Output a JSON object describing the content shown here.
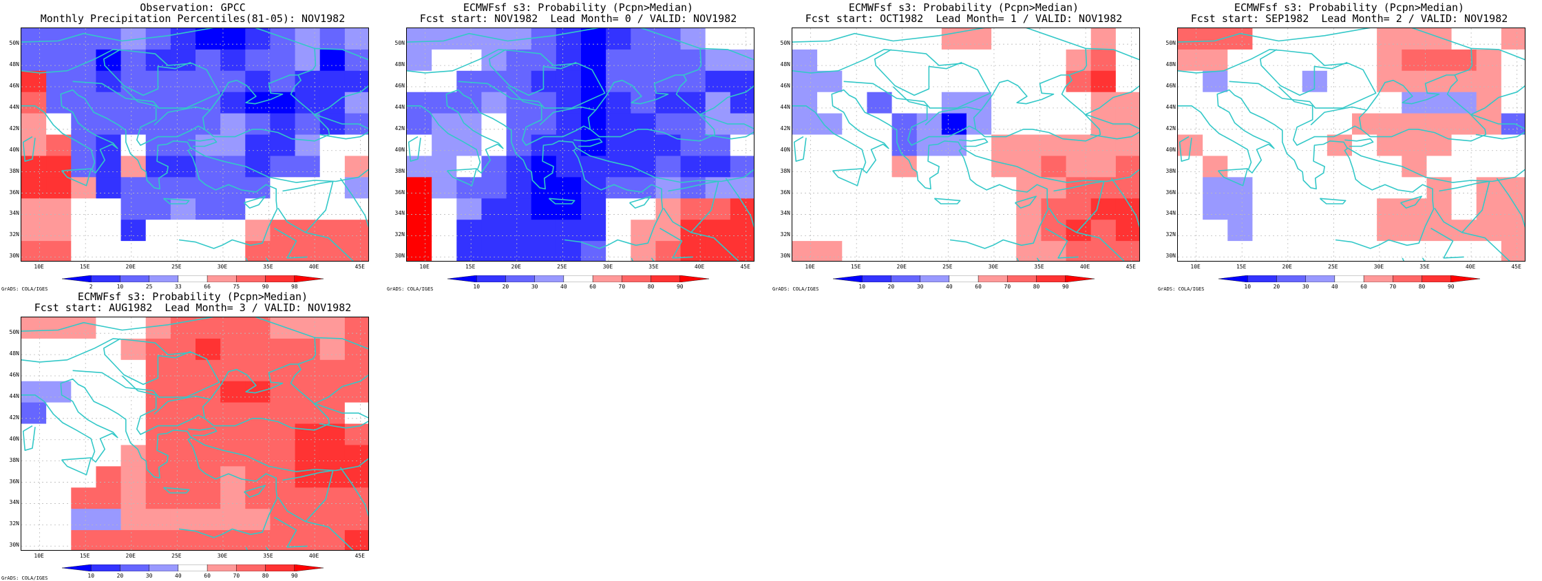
{
  "colors": {
    "coast": "#33c8c8",
    "grid": "#bbbbbb",
    "scale": [
      "#0000ff",
      "#3333ff",
      "#6666ff",
      "#9999ff",
      "#ffffff",
      "#ff9999",
      "#ff6666",
      "#ff3333",
      "#ff0000"
    ]
  },
  "y_ticks": [
    "50N",
    "48N",
    "46N",
    "44N",
    "42N",
    "40N",
    "38N",
    "36N",
    "34N",
    "32N",
    "30N"
  ],
  "x_ticks": [
    "10E",
    "15E",
    "20E",
    "25E",
    "30E",
    "35E",
    "40E",
    "45E"
  ],
  "credit": "GrADS: COLA/IGES",
  "panels": [
    {
      "title1": "Observation: GPCC",
      "title2": "Monthly Precipitation Percentiles(81-05): NOV1982",
      "legend": [
        "2",
        "10",
        "25",
        "33",
        "66",
        "75",
        "90",
        "98"
      ],
      "grid": [
        "22223210012323",
        "22202112122302",
        "72212222212111",
        "62222222100113",
        "54222222321212",
        "56214223311344",
        "77215112212245",
        "77512222224443",
        "55442232244444",
        "55441444456666",
        "66444444466666"
      ]
    },
    {
      "title1": "ECMWFsf s3: Probability (Pcpn>Median)",
      "title2": "Fcst start: NOV1982  Lead Month= 0 / VALID: NOV1982",
      "legend": [
        "10",
        "20",
        "30",
        "40",
        "60",
        "70",
        "80",
        "90"
      ],
      "grid": [
        "33333210122344",
        "34432210222233",
        "44222110222211",
        "22232210121131",
        "23342210112233",
        "43342110111224",
        "33421011112112",
        "83221001223233",
        "84311001445667",
        "84111111455777",
        "84111112456777"
      ]
    },
    {
      "title1": "ECMWFsf s3: Probability (Pcpn>Median)",
      "title2": "Fcst start: OCT1982  Lead Month= 1 / VALID: NOV1982",
      "legend": [
        "10",
        "20",
        "30",
        "40",
        "60",
        "70",
        "80",
        "90"
      ],
      "grid": [
        "44444455444454",
        "34444444444564",
        "33444444444674",
        "34424433444455",
        "33442303444455",
        "44442334555555",
        "44445444556556",
        "44444444455666",
        "44444444456677",
        "44444444456767",
        "55444444455666"
      ]
    },
    {
      "title1": "ECMWFsf s3: Probability (Pcpn>Median)",
      "title2": "Fcst start: SEP1982  Lead Month= 2 / VALID: NOV1982",
      "legend": [
        "10",
        "20",
        "30",
        "40",
        "60",
        "70",
        "80",
        "90"
      ],
      "grid": [
        "66644444555445",
        "55444444566654",
        "43444344555554",
        "44444444433354",
        "44444445555552",
        "54444454555444",
        "45444444454444",
        "43344444445455",
        "43344444555455",
        "44344444555555",
        "44444444444445"
      ]
    },
    {
      "title1": "ECMWFsf s3: Probability (Pcpn>Median)",
      "title2": "Fcst start: AUG1982  Lead Month= 3 / VALID: NOV1982",
      "legend": [
        "10",
        "20",
        "30",
        "40",
        "60",
        "70",
        "80",
        "90"
      ],
      "grid": [
        "55544566665556",
        "44445667666656",
        "44444666666666",
        "33444666776666",
        "24444666666664",
        "44444666666776",
        "44445666666777",
        "44465666566777",
        "44665666566666",
        "44335555556666",
        "44666666666667"
      ]
    }
  ]
}
